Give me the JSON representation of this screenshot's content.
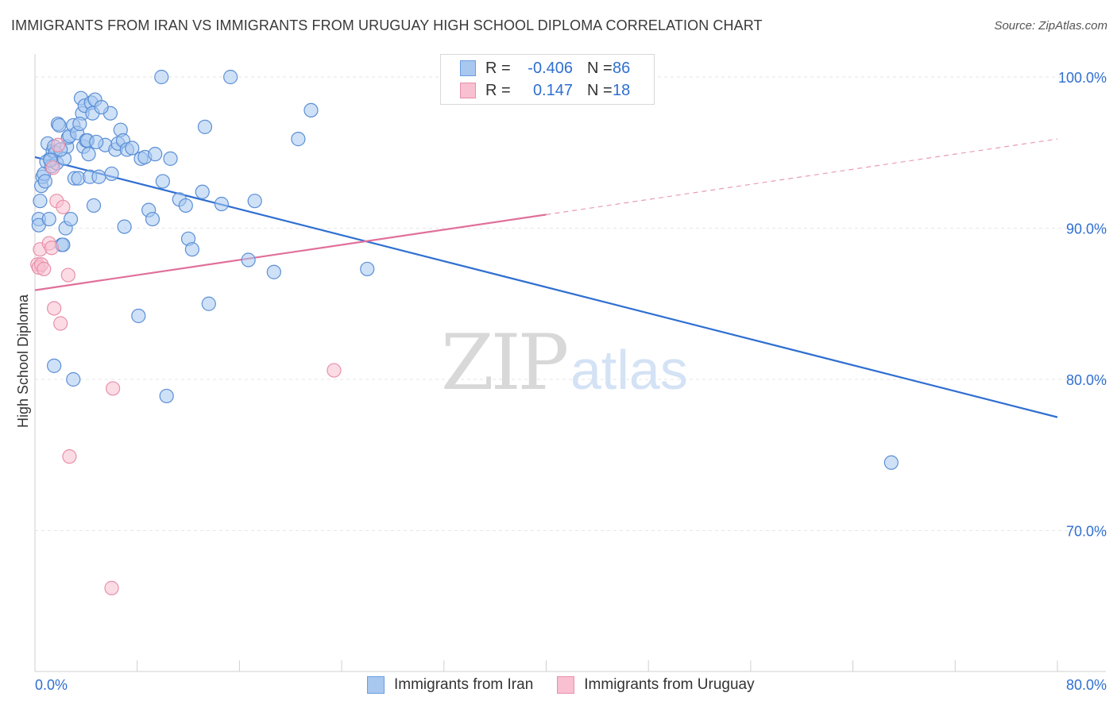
{
  "title": "IMMIGRANTS FROM IRAN VS IMMIGRANTS FROM URUGUAY HIGH SCHOOL DIPLOMA CORRELATION CHART",
  "source": "Source: ZipAtlas.com",
  "watermark": {
    "zip": "ZIP",
    "atlas": "atlas"
  },
  "legend": {
    "rows": [
      {
        "r_label": "R =",
        "r_value": "-0.406",
        "n_label": "N =",
        "n_value": "86",
        "color": "#a8c8f0",
        "border": "#6a9de0"
      },
      {
        "r_label": "R =",
        "r_value": "0.147",
        "n_label": "N =",
        "n_value": "18",
        "color": "#f8c0d0",
        "border": "#e890aa"
      }
    ]
  },
  "colors": {
    "iran_fill": "#a8c8f0",
    "iran_stroke": "#5b8fd6",
    "iran_line": "#2f6fd1",
    "uruguay_fill": "#f8c0d0",
    "uruguay_stroke": "#e890aa",
    "uruguay_line": "#e0709a",
    "tick_label": "#2f6fd1",
    "grid": "#e6e6e6"
  },
  "chart_data": {
    "type": "scatter",
    "title": "IMMIGRANTS FROM IRAN VS IMMIGRANTS FROM URUGUAY HIGH SCHOOL DIPLOMA CORRELATION CHART",
    "xlabel": "",
    "ylabel": "High School Diploma",
    "xlim": [
      0,
      80
    ],
    "ylim": [
      60,
      100
    ],
    "x_tick_labels": [
      "0.0%",
      "80.0%"
    ],
    "y_ticks": [
      70,
      80,
      90,
      100
    ],
    "y_tick_labels": [
      "70.0%",
      "80.0%",
      "90.0%",
      "100.0%"
    ],
    "grid": true,
    "legend_position": "top-center",
    "series": [
      {
        "name": "Immigrants from Iran",
        "points": [
          [
            0.3,
            90.6
          ],
          [
            0.3,
            90.2
          ],
          [
            0.4,
            91.8
          ],
          [
            0.5,
            92.8
          ],
          [
            0.6,
            93.4
          ],
          [
            0.7,
            93.6
          ],
          [
            0.8,
            93.1
          ],
          [
            0.9,
            94.4
          ],
          [
            1.0,
            95.6
          ],
          [
            1.1,
            90.6
          ],
          [
            1.2,
            94.6
          ],
          [
            1.3,
            94.1
          ],
          [
            1.4,
            95.1
          ],
          [
            1.5,
            95.4
          ],
          [
            1.6,
            95.0
          ],
          [
            1.7,
            94.3
          ],
          [
            1.8,
            96.9
          ],
          [
            1.9,
            96.8
          ],
          [
            2.1,
            88.9
          ],
          [
            2.2,
            88.9
          ],
          [
            2.3,
            94.6
          ],
          [
            2.4,
            90.0
          ],
          [
            2.5,
            95.4
          ],
          [
            2.6,
            96.0
          ],
          [
            2.7,
            96.1
          ],
          [
            2.8,
            90.6
          ],
          [
            3.0,
            96.8
          ],
          [
            3.1,
            93.3
          ],
          [
            3.3,
            96.3
          ],
          [
            3.4,
            93.3
          ],
          [
            3.6,
            98.6
          ],
          [
            3.7,
            97.6
          ],
          [
            3.8,
            95.4
          ],
          [
            3.9,
            98.1
          ],
          [
            4.0,
            95.8
          ],
          [
            4.1,
            95.8
          ],
          [
            4.2,
            94.9
          ],
          [
            4.3,
            93.4
          ],
          [
            4.4,
            98.3
          ],
          [
            4.5,
            97.6
          ],
          [
            4.6,
            91.5
          ],
          [
            4.7,
            98.5
          ],
          [
            5.0,
            93.4
          ],
          [
            5.5,
            95.5
          ],
          [
            5.9,
            97.6
          ],
          [
            6.0,
            93.6
          ],
          [
            6.3,
            95.2
          ],
          [
            6.5,
            95.6
          ],
          [
            6.7,
            96.5
          ],
          [
            6.9,
            95.8
          ],
          [
            7.0,
            90.1
          ],
          [
            7.2,
            95.2
          ],
          [
            7.6,
            95.3
          ],
          [
            8.1,
            84.2
          ],
          [
            8.3,
            94.6
          ],
          [
            8.6,
            94.7
          ],
          [
            8.9,
            91.2
          ],
          [
            9.2,
            90.6
          ],
          [
            9.4,
            94.9
          ],
          [
            9.9,
            100.0
          ],
          [
            10.0,
            93.1
          ],
          [
            10.3,
            78.9
          ],
          [
            10.6,
            94.6
          ],
          [
            11.3,
            91.9
          ],
          [
            11.8,
            91.5
          ],
          [
            12.0,
            89.3
          ],
          [
            12.3,
            88.6
          ],
          [
            13.1,
            92.4
          ],
          [
            13.3,
            96.7
          ],
          [
            13.6,
            85.0
          ],
          [
            14.6,
            91.6
          ],
          [
            15.3,
            100.0
          ],
          [
            16.7,
            87.9
          ],
          [
            17.2,
            91.8
          ],
          [
            18.7,
            87.1
          ],
          [
            20.6,
            95.9
          ],
          [
            21.6,
            97.8
          ],
          [
            26.0,
            87.3
          ],
          [
            1.5,
            80.9
          ],
          [
            3.0,
            80.0
          ],
          [
            67.0,
            74.5
          ],
          [
            4.8,
            95.7
          ],
          [
            2.0,
            95.2
          ],
          [
            1.2,
            94.5
          ],
          [
            3.5,
            96.9
          ],
          [
            5.2,
            98.0
          ]
        ]
      },
      {
        "name": "Immigrants from Uruguay",
        "points": [
          [
            0.2,
            87.6
          ],
          [
            0.3,
            87.4
          ],
          [
            0.4,
            88.6
          ],
          [
            0.5,
            87.6
          ],
          [
            0.7,
            87.3
          ],
          [
            1.1,
            89.0
          ],
          [
            1.3,
            88.7
          ],
          [
            1.5,
            84.7
          ],
          [
            1.7,
            91.8
          ],
          [
            1.8,
            95.5
          ],
          [
            2.0,
            83.7
          ],
          [
            2.2,
            91.4
          ],
          [
            2.6,
            86.9
          ],
          [
            2.7,
            74.9
          ],
          [
            6.1,
            79.4
          ],
          [
            6.0,
            66.2
          ],
          [
            23.4,
            80.6
          ],
          [
            1.4,
            94.0
          ]
        ]
      }
    ],
    "trendlines": [
      {
        "series": "Immigrants from Iran",
        "x": [
          0,
          80
        ],
        "y": [
          94.7,
          77.5
        ],
        "style": "solid"
      },
      {
        "series": "Immigrants from Uruguay",
        "x": [
          0,
          40
        ],
        "y": [
          85.9,
          90.9
        ],
        "style": "solid"
      },
      {
        "series": "Immigrants from Uruguay",
        "x": [
          40,
          80
        ],
        "y": [
          90.9,
          95.9
        ],
        "style": "dashed"
      }
    ]
  }
}
